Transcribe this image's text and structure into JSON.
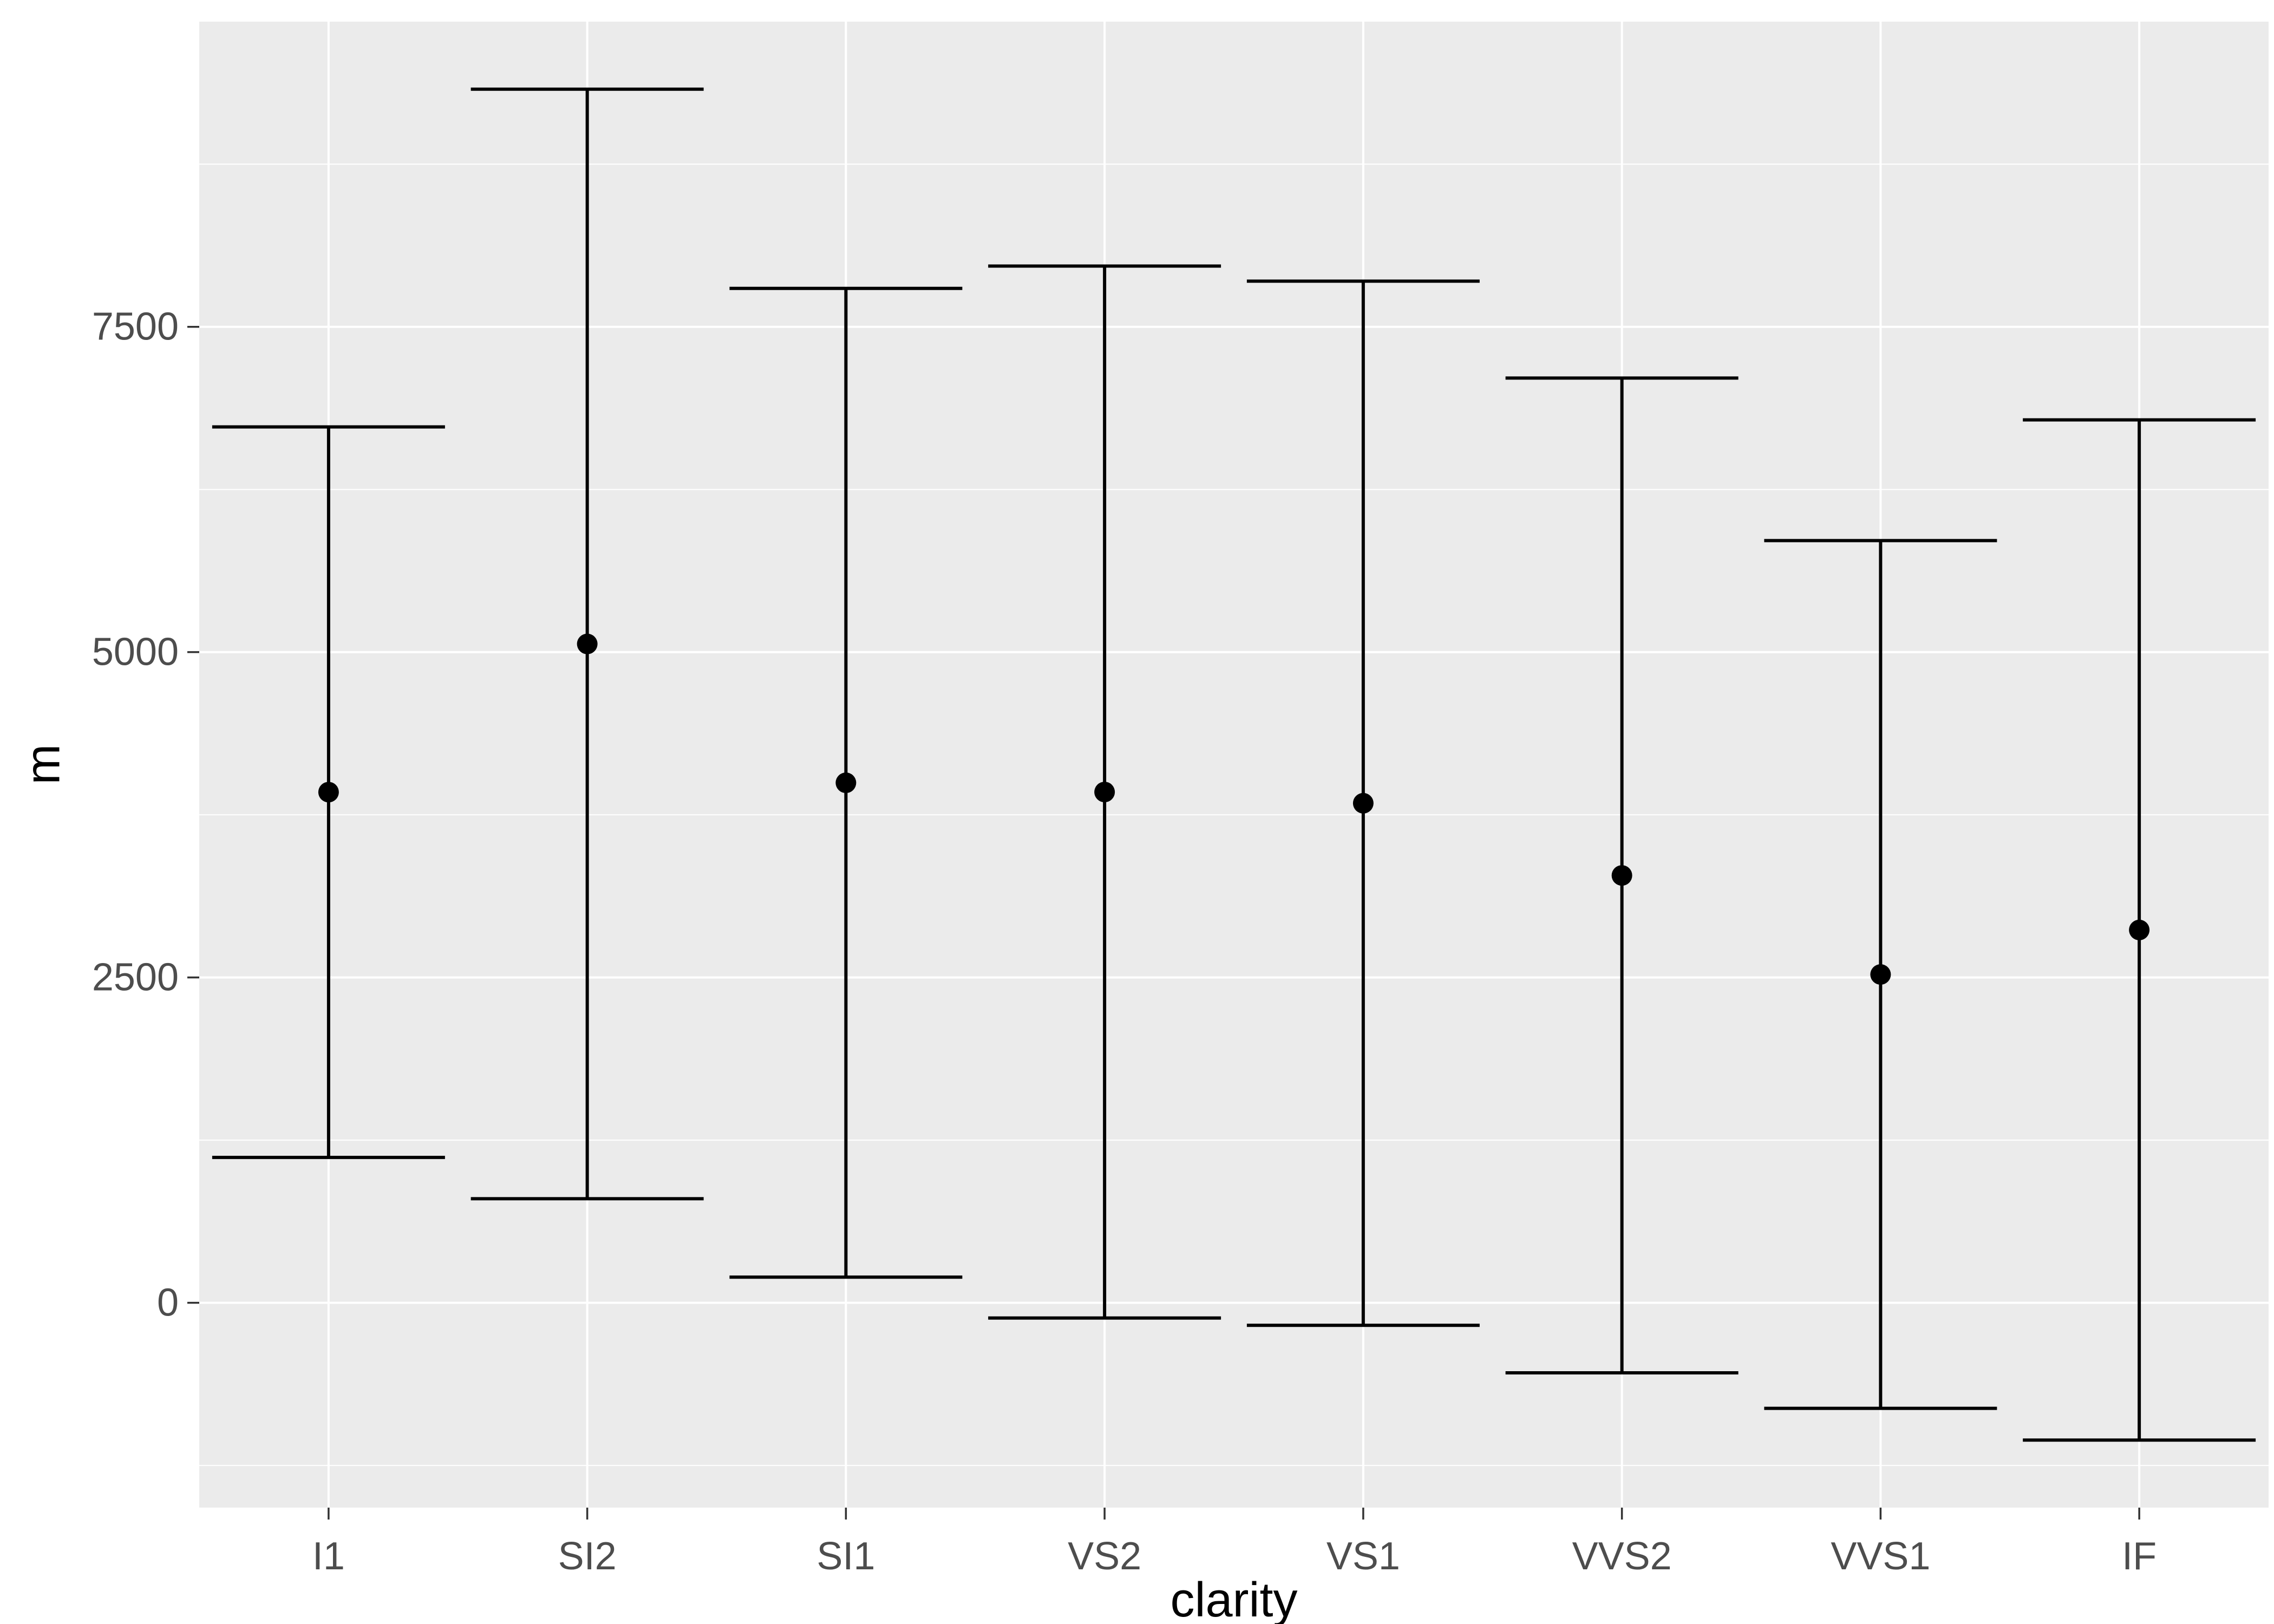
{
  "chart": {
    "background": "#FFFFFF",
    "panel_background": "#EBEBEB",
    "grid_color": "#FFFFFF",
    "point_color": "#000000",
    "line_color": "#000000",
    "axis_tick_color": "#333333",
    "axis_text_color": "#4D4D4D",
    "axis_title_color": "#000000"
  },
  "chart_data": {
    "type": "pointrange",
    "title": "",
    "xlabel": "clarity",
    "ylabel": "m",
    "categories": [
      "I1",
      "SI2",
      "SI1",
      "VS2",
      "VS1",
      "VVS2",
      "VVS1",
      "IF"
    ],
    "means": [
      3924,
      5063,
      3996,
      3925,
      3839,
      3284,
      2523,
      2865
    ],
    "lower": [
      1117,
      800,
      197,
      -117,
      -173,
      -538,
      -811,
      -1055
    ],
    "upper": [
      6731,
      9326,
      7795,
      7967,
      7851,
      7106,
      5857,
      6785
    ],
    "y_ticks": [
      0,
      2500,
      5000,
      7500
    ],
    "y_tick_labels": [
      "0",
      "2500",
      "5000",
      "7500"
    ],
    "ylim": [
      -1574,
      9845
    ],
    "grid": true,
    "legend": "none"
  }
}
